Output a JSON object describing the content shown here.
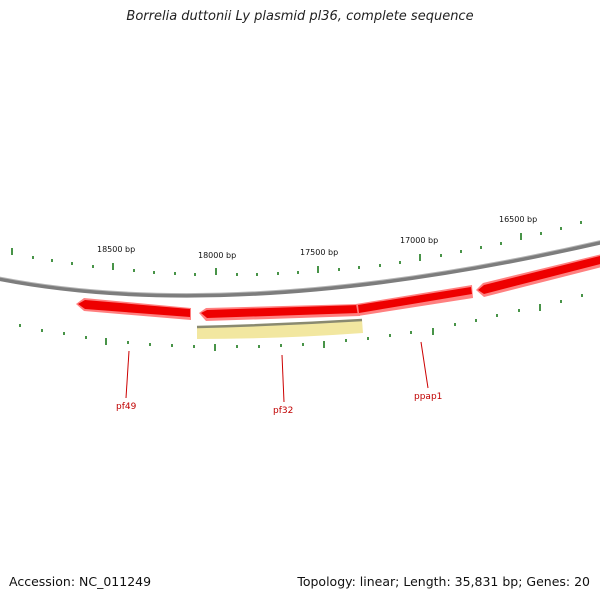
{
  "title": "Borrelia duttonii Ly plasmid pl36, complete sequence",
  "footer": {
    "accession": "Accession: NC_011249",
    "summary": "Topology: linear; Length: 35,831 bp; Genes: 20"
  },
  "colors": {
    "backbone": "#7a7a7a",
    "gene_fill": "#ee0000",
    "gene_shadow": "#ff8080",
    "pseudo_fill": "#f2e7a0",
    "pseudo_edge": "#8a8a70",
    "tick": "#1a7a1a",
    "label_line": "#cc0000"
  },
  "scale": {
    "tick_labels": [
      {
        "bp": 18500,
        "text": "18500 bp"
      },
      {
        "bp": 18000,
        "text": "18000 bp"
      },
      {
        "bp": 17500,
        "text": "17500 bp"
      },
      {
        "bp": 17000,
        "text": "17000 bp"
      },
      {
        "bp": 16500,
        "text": "16500 bp"
      }
    ]
  },
  "genes": [
    {
      "name": "pf49",
      "strand": "reverse",
      "color": "red"
    },
    {
      "name": "pf32",
      "strand": "reverse",
      "color": "red"
    },
    {
      "name": "ppap1",
      "strand": "reverse",
      "color": "red"
    }
  ]
}
